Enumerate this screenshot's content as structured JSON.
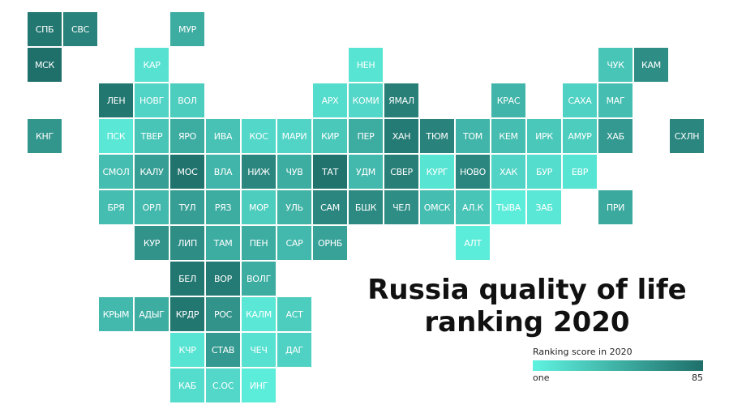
{
  "title": {
    "line1": "Russia quality of life",
    "line2": "ranking 2020"
  },
  "legend": {
    "title": "Ranking score in 2020",
    "min_label": "one",
    "max_label": "85",
    "min_value": 1,
    "max_value": 85,
    "color_low": "#5ff2e0",
    "color_high": "#1f6f6a"
  },
  "regions": [
    {
      "code": "СПБ",
      "row": 0,
      "col": 0,
      "rank": 80
    },
    {
      "code": "СВС",
      "row": 0,
      "col": 1,
      "rank": 72
    },
    {
      "code": "МУР",
      "row": 0,
      "col": 4,
      "rank": 45
    },
    {
      "code": "МСК",
      "row": 1,
      "col": 0,
      "rank": 85
    },
    {
      "code": "КАР",
      "row": 1,
      "col": 3,
      "rank": 12
    },
    {
      "code": "НЕН",
      "row": 1,
      "col": 9,
      "rank": 10
    },
    {
      "code": "ЧУК",
      "row": 1,
      "col": 16,
      "rank": 30
    },
    {
      "code": "КАМ",
      "row": 1,
      "col": 17,
      "rank": 65
    },
    {
      "code": "ЛЕН",
      "row": 2,
      "col": 2,
      "rank": 80
    },
    {
      "code": "НОВГ",
      "row": 2,
      "col": 3,
      "rank": 20
    },
    {
      "code": "ВОЛ",
      "row": 2,
      "col": 4,
      "rank": 25
    },
    {
      "code": "АРХ",
      "row": 2,
      "col": 8,
      "rank": 15
    },
    {
      "code": "КОМИ",
      "row": 2,
      "col": 9,
      "rank": 18
    },
    {
      "code": "ЯМАЛ",
      "row": 2,
      "col": 10,
      "rank": 75
    },
    {
      "code": "КРАС",
      "row": 2,
      "col": 13,
      "rank": 40
    },
    {
      "code": "САХА",
      "row": 2,
      "col": 15,
      "rank": 22
    },
    {
      "code": "МАГ",
      "row": 2,
      "col": 16,
      "rank": 35
    },
    {
      "code": "КНГ",
      "row": 3,
      "col": 0,
      "rank": 60
    },
    {
      "code": "ПСК",
      "row": 3,
      "col": 2,
      "rank": 8
    },
    {
      "code": "ТВЕР",
      "row": 3,
      "col": 3,
      "rank": 30
    },
    {
      "code": "ЯРО",
      "row": 3,
      "col": 4,
      "rank": 45
    },
    {
      "code": "ИВА",
      "row": 3,
      "col": 5,
      "rank": 32
    },
    {
      "code": "КОС",
      "row": 3,
      "col": 6,
      "rank": 18
    },
    {
      "code": "МАРИ",
      "row": 3,
      "col": 7,
      "rank": 20
    },
    {
      "code": "КИР",
      "row": 3,
      "col": 8,
      "rank": 28
    },
    {
      "code": "ПЕР",
      "row": 3,
      "col": 9,
      "rank": 45
    },
    {
      "code": "ХАН",
      "row": 3,
      "col": 10,
      "rank": 78
    },
    {
      "code": "ТЮМ",
      "row": 3,
      "col": 11,
      "rank": 72
    },
    {
      "code": "ТОМ",
      "row": 3,
      "col": 12,
      "rank": 40
    },
    {
      "code": "КЕМ",
      "row": 3,
      "col": 13,
      "rank": 35
    },
    {
      "code": "ИРК",
      "row": 3,
      "col": 14,
      "rank": 28
    },
    {
      "code": "АМУР",
      "row": 3,
      "col": 15,
      "rank": 25
    },
    {
      "code": "ХАБ",
      "row": 3,
      "col": 16,
      "rank": 58
    },
    {
      "code": "СХЛН",
      "row": 3,
      "col": 18,
      "rank": 70
    },
    {
      "code": "СМОЛ",
      "row": 4,
      "col": 2,
      "rank": 35
    },
    {
      "code": "КАЛУ",
      "row": 4,
      "col": 3,
      "rank": 55
    },
    {
      "code": "МОС",
      "row": 4,
      "col": 4,
      "rank": 82
    },
    {
      "code": "ВЛА",
      "row": 4,
      "col": 5,
      "rank": 40
    },
    {
      "code": "НИЖ",
      "row": 4,
      "col": 6,
      "rank": 70
    },
    {
      "code": "ЧУВ",
      "row": 4,
      "col": 7,
      "rank": 45
    },
    {
      "code": "ТАТ",
      "row": 4,
      "col": 8,
      "rank": 82
    },
    {
      "code": "УДМ",
      "row": 4,
      "col": 9,
      "rank": 38
    },
    {
      "code": "СВЕР",
      "row": 4,
      "col": 10,
      "rank": 75
    },
    {
      "code": "КУРГ",
      "row": 4,
      "col": 11,
      "rank": 10
    },
    {
      "code": "НОВО",
      "row": 4,
      "col": 12,
      "rank": 70
    },
    {
      "code": "ХАК",
      "row": 4,
      "col": 13,
      "rank": 20
    },
    {
      "code": "БУР",
      "row": 4,
      "col": 14,
      "rank": 15
    },
    {
      "code": "ЕВР",
      "row": 4,
      "col": 15,
      "rank": 10
    },
    {
      "code": "БРЯ",
      "row": 5,
      "col": 2,
      "rank": 35
    },
    {
      "code": "ОРЛ",
      "row": 5,
      "col": 3,
      "rank": 38
    },
    {
      "code": "ТУЛ",
      "row": 5,
      "col": 4,
      "rank": 55
    },
    {
      "code": "РЯЗ",
      "row": 5,
      "col": 5,
      "rank": 45
    },
    {
      "code": "МОР",
      "row": 5,
      "col": 6,
      "rank": 25
    },
    {
      "code": "УЛЬ",
      "row": 5,
      "col": 7,
      "rank": 42
    },
    {
      "code": "САМ",
      "row": 5,
      "col": 8,
      "rank": 70
    },
    {
      "code": "БШК",
      "row": 5,
      "col": 9,
      "rank": 68
    },
    {
      "code": "ЧЕЛ",
      "row": 5,
      "col": 10,
      "rank": 65
    },
    {
      "code": "ОМСК",
      "row": 5,
      "col": 11,
      "rank": 35
    },
    {
      "code": "АЛ.К",
      "row": 5,
      "col": 12,
      "rank": 30
    },
    {
      "code": "ТЫВА",
      "row": 5,
      "col": 13,
      "rank": 5
    },
    {
      "code": "ЗАБ",
      "row": 5,
      "col": 14,
      "rank": 8
    },
    {
      "code": "ПРИ",
      "row": 5,
      "col": 16,
      "rank": 48
    },
    {
      "code": "КУР",
      "row": 6,
      "col": 3,
      "rank": 62
    },
    {
      "code": "ЛИП",
      "row": 6,
      "col": 4,
      "rank": 65
    },
    {
      "code": "ТАМ",
      "row": 6,
      "col": 5,
      "rank": 45
    },
    {
      "code": "ПЕН",
      "row": 6,
      "col": 6,
      "rank": 45
    },
    {
      "code": "САР",
      "row": 6,
      "col": 7,
      "rank": 38
    },
    {
      "code": "ОРНБ",
      "row": 6,
      "col": 8,
      "rank": 52
    },
    {
      "code": "АЛТ",
      "row": 6,
      "col": 12,
      "rank": 5
    },
    {
      "code": "БЕЛ",
      "row": 7,
      "col": 4,
      "rank": 80
    },
    {
      "code": "ВОР",
      "row": 7,
      "col": 5,
      "rank": 78
    },
    {
      "code": "ВОЛГ",
      "row": 7,
      "col": 6,
      "rank": 45
    },
    {
      "code": "КРЫМ",
      "row": 8,
      "col": 2,
      "rank": 38
    },
    {
      "code": "АДЫГ",
      "row": 8,
      "col": 3,
      "rank": 45
    },
    {
      "code": "КРДР",
      "row": 8,
      "col": 4,
      "rank": 80
    },
    {
      "code": "РОС",
      "row": 8,
      "col": 5,
      "rank": 62
    },
    {
      "code": "КАЛМ",
      "row": 8,
      "col": 6,
      "rank": 8
    },
    {
      "code": "АСТ",
      "row": 8,
      "col": 7,
      "rank": 25
    },
    {
      "code": "КЧР",
      "row": 9,
      "col": 4,
      "rank": 10
    },
    {
      "code": "СТАВ",
      "row": 9,
      "col": 5,
      "rank": 58
    },
    {
      "code": "ЧЕЧ",
      "row": 9,
      "col": 6,
      "rank": 12
    },
    {
      "code": "ДАГ",
      "row": 9,
      "col": 7,
      "rank": 22
    },
    {
      "code": "КАБ",
      "row": 10,
      "col": 4,
      "rank": 15
    },
    {
      "code": "С.ОС",
      "row": 10,
      "col": 5,
      "rank": 18
    },
    {
      "code": "ИНГ",
      "row": 10,
      "col": 6,
      "rank": 5
    }
  ]
}
